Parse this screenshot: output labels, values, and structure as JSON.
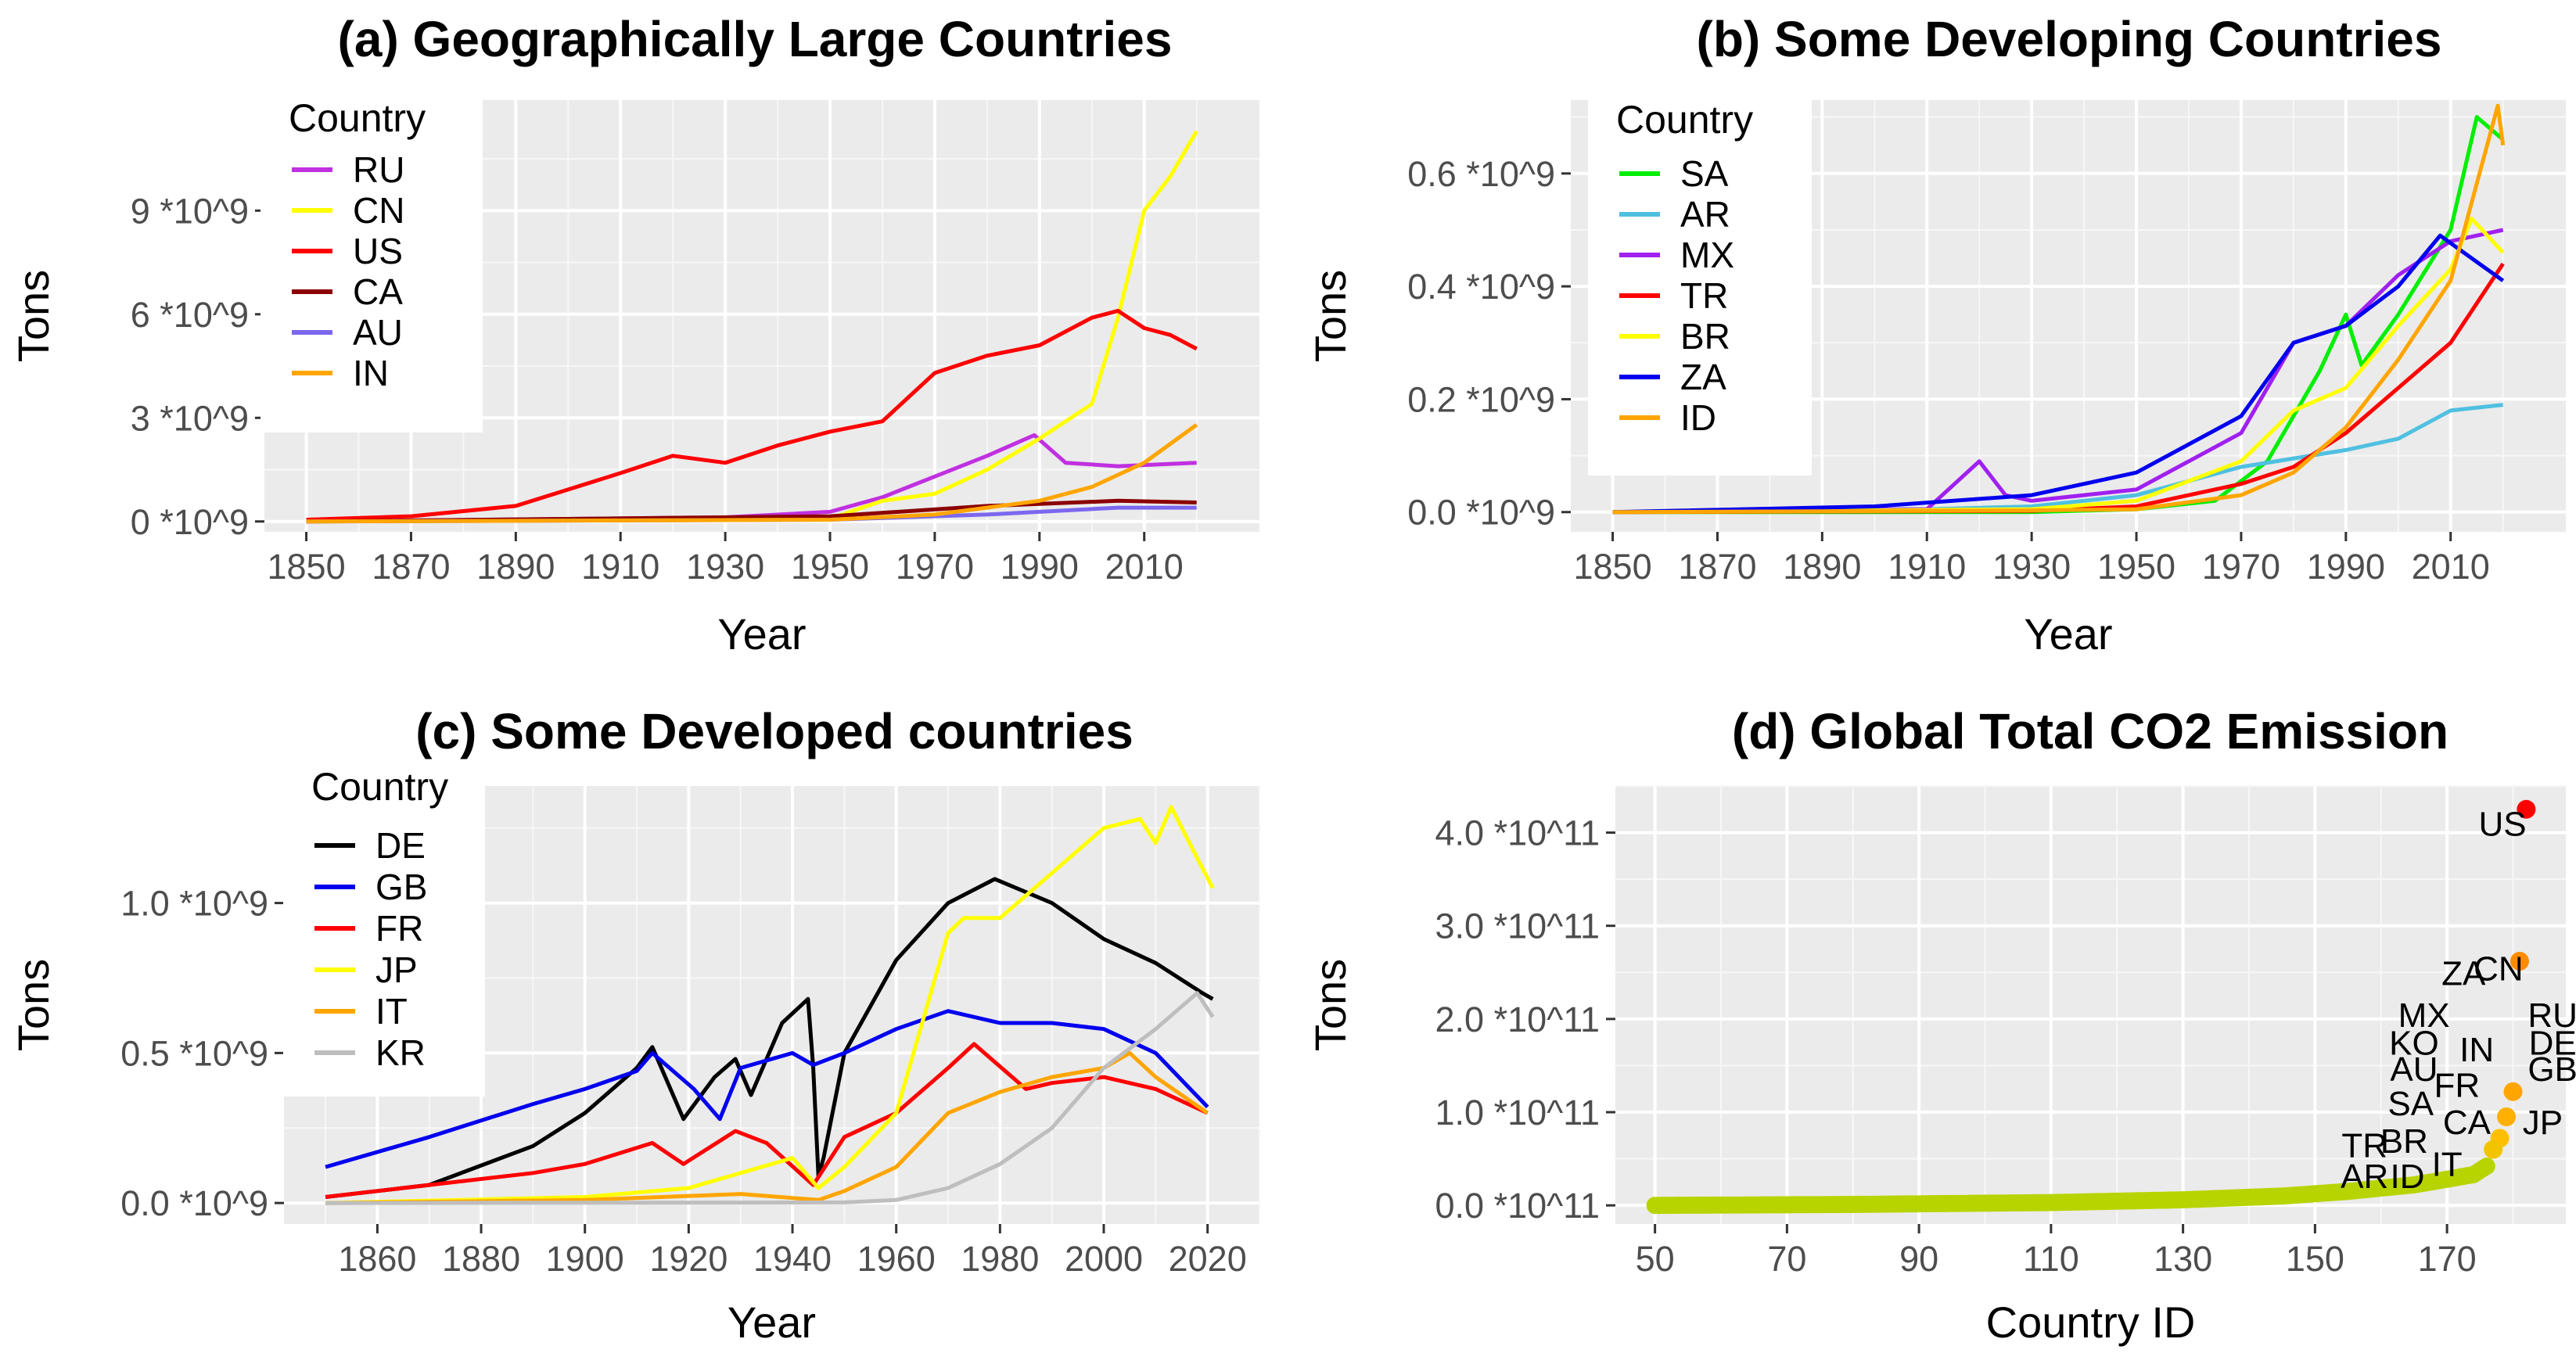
{
  "chart_data": [
    {
      "type": "line",
      "title": "(a) Geographically Large Countries",
      "xlabel": "Year",
      "ylabel": "Tons",
      "xlim": [
        1842,
        2032
      ],
      "ylim": [
        -0.3,
        12.2
      ],
      "xticks": [
        1850,
        1870,
        1890,
        1910,
        1930,
        1950,
        1970,
        1990,
        2010
      ],
      "xtick_labels": [
        "1850",
        "1870",
        "1890",
        "1910",
        "1930",
        "1950",
        "1970",
        "1990",
        "2010"
      ],
      "yticks": [
        0,
        3,
        6,
        9
      ],
      "ytick_labels": [
        "0 *10^9",
        "3 *10^9",
        "6 *10^9",
        "9 *10^9"
      ],
      "y_unit_note": "values in units of 10^9 tons",
      "legend": {
        "title": "Country",
        "position": "top-left"
      },
      "series": [
        {
          "name": "RU",
          "color": "#c030e0",
          "x": [
            1850,
            1930,
            1950,
            1960,
            1970,
            1980,
            1989,
            1995,
            2005,
            2020
          ],
          "y": [
            0,
            0.12,
            0.28,
            0.7,
            1.3,
            1.9,
            2.5,
            1.7,
            1.6,
            1.7
          ]
        },
        {
          "name": "CN",
          "color": "#ffff00",
          "x": [
            1850,
            1950,
            1960,
            1970,
            1980,
            1990,
            2000,
            2005,
            2010,
            2015,
            2020
          ],
          "y": [
            0,
            0.08,
            0.6,
            0.8,
            1.5,
            2.4,
            3.4,
            5.9,
            9.0,
            10.0,
            11.3
          ]
        },
        {
          "name": "US",
          "color": "#ff0000",
          "x": [
            1850,
            1870,
            1890,
            1910,
            1920,
            1930,
            1940,
            1950,
            1960,
            1970,
            1980,
            1990,
            2000,
            2005,
            2010,
            2015,
            2020
          ],
          "y": [
            0.05,
            0.15,
            0.45,
            1.4,
            1.9,
            1.7,
            2.2,
            2.6,
            2.9,
            4.3,
            4.8,
            5.1,
            5.9,
            6.1,
            5.6,
            5.4,
            5.0
          ]
        },
        {
          "name": "CA",
          "color": "#8b0000",
          "x": [
            1850,
            1950,
            1980,
            2005,
            2020
          ],
          "y": [
            0,
            0.15,
            0.45,
            0.6,
            0.55
          ]
        },
        {
          "name": "AU",
          "color": "#7b68ee",
          "x": [
            1850,
            1950,
            1980,
            2005,
            2020
          ],
          "y": [
            0,
            0.05,
            0.2,
            0.4,
            0.4
          ]
        },
        {
          "name": "IN",
          "color": "#ffa500",
          "x": [
            1850,
            1950,
            1970,
            1990,
            2000,
            2010,
            2020
          ],
          "y": [
            0,
            0.05,
            0.2,
            0.6,
            1.0,
            1.7,
            2.8
          ]
        }
      ]
    },
    {
      "type": "line",
      "title": "(b) Some Developing Countries",
      "xlabel": "Year",
      "ylabel": "Tons",
      "xlim": [
        1842,
        2032
      ],
      "ylim": [
        -0.035,
        0.73
      ],
      "xticks": [
        1850,
        1870,
        1890,
        1910,
        1930,
        1950,
        1970,
        1990,
        2010
      ],
      "xtick_labels": [
        "1850",
        "1870",
        "1890",
        "1910",
        "1930",
        "1950",
        "1970",
        "1990",
        "2010"
      ],
      "yticks": [
        0,
        0.2,
        0.4,
        0.6
      ],
      "ytick_labels": [
        "0.0 *10^9",
        "0.2 *10^9",
        "0.4 *10^9",
        "0.6 *10^9"
      ],
      "y_unit_note": "values in units of 10^9 tons",
      "legend": {
        "title": "Country",
        "position": "top-left"
      },
      "series": [
        {
          "name": "SA",
          "color": "#00ee00",
          "x": [
            1850,
            1930,
            1950,
            1965,
            1975,
            1985,
            1990,
            1993,
            2000,
            2010,
            2015,
            2020
          ],
          "y": [
            0,
            0,
            0.005,
            0.02,
            0.09,
            0.25,
            0.35,
            0.26,
            0.35,
            0.5,
            0.7,
            0.66
          ]
        },
        {
          "name": "AR",
          "color": "#4fc0e0",
          "x": [
            1850,
            1910,
            1930,
            1950,
            1970,
            1990,
            2000,
            2010,
            2020
          ],
          "y": [
            0,
            0.005,
            0.01,
            0.03,
            0.08,
            0.11,
            0.13,
            0.18,
            0.19
          ]
        },
        {
          "name": "MX",
          "color": "#a020f0",
          "x": [
            1850,
            1910,
            1920,
            1925,
            1930,
            1950,
            1970,
            1980,
            1990,
            2000,
            2010,
            2020
          ],
          "y": [
            0,
            0.005,
            0.09,
            0.03,
            0.02,
            0.04,
            0.14,
            0.3,
            0.33,
            0.42,
            0.48,
            0.5
          ]
        },
        {
          "name": "TR",
          "color": "#ff0000",
          "x": [
            1850,
            1930,
            1950,
            1970,
            1980,
            1990,
            2000,
            2010,
            2020
          ],
          "y": [
            0,
            0.002,
            0.01,
            0.05,
            0.08,
            0.14,
            0.22,
            0.3,
            0.44
          ]
        },
        {
          "name": "BR",
          "color": "#ffff00",
          "x": [
            1850,
            1930,
            1950,
            1970,
            1980,
            1990,
            2000,
            2010,
            2014,
            2020
          ],
          "y": [
            0,
            0.005,
            0.02,
            0.09,
            0.18,
            0.22,
            0.33,
            0.43,
            0.52,
            0.46
          ]
        },
        {
          "name": "ZA",
          "color": "#0000ee",
          "x": [
            1850,
            1900,
            1930,
            1950,
            1970,
            1980,
            1990,
            2000,
            2008,
            2020
          ],
          "y": [
            0,
            0.01,
            0.03,
            0.07,
            0.17,
            0.3,
            0.33,
            0.4,
            0.49,
            0.41
          ]
        },
        {
          "name": "ID",
          "color": "#ffa500",
          "x": [
            1850,
            1930,
            1950,
            1970,
            1980,
            1990,
            2000,
            2010,
            2019,
            2020
          ],
          "y": [
            0,
            0.003,
            0.005,
            0.03,
            0.07,
            0.15,
            0.27,
            0.41,
            0.72,
            0.65
          ]
        }
      ]
    },
    {
      "type": "line",
      "title": "(c) Some Developed countries",
      "xlabel": "Year",
      "ylabel": "Tons",
      "xlim": [
        1842,
        2030
      ],
      "ylim": [
        -0.07,
        1.39
      ],
      "xticks": [
        1860,
        1880,
        1900,
        1920,
        1940,
        1960,
        1980,
        2000,
        2020
      ],
      "xtick_labels": [
        "1860",
        "1880",
        "1900",
        "1920",
        "1940",
        "1960",
        "1980",
        "2000",
        "2020"
      ],
      "yticks": [
        0,
        0.5,
        1.0
      ],
      "ytick_labels": [
        "0.0 *10^9",
        "0.5 *10^9",
        "1.0 *10^9"
      ],
      "y_unit_note": "values in units of 10^9 tons",
      "legend": {
        "title": "Country",
        "position": "top-left"
      },
      "series": [
        {
          "name": "DE",
          "color": "#000000",
          "x": [
            1850,
            1870,
            1890,
            1900,
            1910,
            1913,
            1919,
            1925,
            1929,
            1932,
            1938,
            1943,
            1944,
            1945,
            1946,
            1950,
            1960,
            1970,
            1979,
            1990,
            2000,
            2010,
            2019,
            2021
          ],
          "y": [
            0.02,
            0.06,
            0.19,
            0.3,
            0.45,
            0.52,
            0.28,
            0.42,
            0.48,
            0.36,
            0.6,
            0.68,
            0.45,
            0.09,
            0.15,
            0.5,
            0.81,
            1.0,
            1.08,
            1.0,
            0.88,
            0.8,
            0.7,
            0.68
          ]
        },
        {
          "name": "GB",
          "color": "#0000ee",
          "x": [
            1850,
            1870,
            1890,
            1900,
            1910,
            1913,
            1921,
            1926,
            1930,
            1940,
            1944,
            1950,
            1960,
            1970,
            1980,
            1990,
            2000,
            2010,
            2020
          ],
          "y": [
            0.12,
            0.22,
            0.33,
            0.38,
            0.44,
            0.5,
            0.38,
            0.28,
            0.45,
            0.5,
            0.46,
            0.5,
            0.58,
            0.64,
            0.6,
            0.6,
            0.58,
            0.5,
            0.32
          ]
        },
        {
          "name": "FR",
          "color": "#ff0000",
          "x": [
            1850,
            1870,
            1890,
            1900,
            1913,
            1919,
            1929,
            1935,
            1944,
            1950,
            1960,
            1970,
            1975,
            1985,
            1990,
            2000,
            2010,
            2020
          ],
          "y": [
            0.02,
            0.06,
            0.1,
            0.13,
            0.2,
            0.13,
            0.24,
            0.2,
            0.06,
            0.22,
            0.3,
            0.45,
            0.53,
            0.38,
            0.4,
            0.42,
            0.38,
            0.3
          ]
        },
        {
          "name": "JP",
          "color": "#ffff00",
          "x": [
            1850,
            1900,
            1920,
            1940,
            1945,
            1950,
            1960,
            1970,
            1973,
            1980,
            1990,
            2000,
            2007,
            2010,
            2013,
            2018,
            2021
          ],
          "y": [
            0,
            0.02,
            0.05,
            0.15,
            0.05,
            0.12,
            0.3,
            0.9,
            0.95,
            0.95,
            1.1,
            1.25,
            1.28,
            1.2,
            1.32,
            1.15,
            1.05
          ]
        },
        {
          "name": "IT",
          "color": "#ffa500",
          "x": [
            1850,
            1900,
            1930,
            1945,
            1950,
            1960,
            1970,
            1980,
            1990,
            2000,
            2005,
            2010,
            2020
          ],
          "y": [
            0,
            0.01,
            0.03,
            0.01,
            0.04,
            0.12,
            0.3,
            0.37,
            0.42,
            0.45,
            0.5,
            0.42,
            0.3
          ]
        },
        {
          "name": "KR",
          "color": "#bebebe",
          "x": [
            1850,
            1950,
            1960,
            1970,
            1980,
            1990,
            2000,
            2010,
            2018,
            2021
          ],
          "y": [
            0,
            0.002,
            0.01,
            0.05,
            0.13,
            0.25,
            0.45,
            0.58,
            0.7,
            0.62
          ]
        }
      ]
    },
    {
      "type": "scatter",
      "title": "(d) Global Total CO2 Emission",
      "xlabel": "Country ID",
      "ylabel": "Tons",
      "xlim": [
        44,
        188
      ],
      "ylim": [
        -0.2,
        4.5
      ],
      "xticks": [
        50,
        70,
        90,
        110,
        130,
        150,
        170
      ],
      "xtick_labels": [
        "50",
        "70",
        "90",
        "110",
        "130",
        "150",
        "170"
      ],
      "yticks": [
        0,
        1,
        2,
        3,
        4
      ],
      "ytick_labels": [
        "0.0 *10^11",
        "1.0 *10^11",
        "2.0 *10^11",
        "3.0 *10^11",
        "4.0 *10^11"
      ],
      "y_unit_note": "values in units of 10^11 tons",
      "points": [
        {
          "x": 182,
          "y": 4.25,
          "color": "#ff0000"
        },
        {
          "x": 181,
          "y": 2.62,
          "color": "#ff8c00"
        },
        {
          "x": 180,
          "y": 1.22,
          "color": "#ffa500"
        },
        {
          "x": 179,
          "y": 0.95,
          "color": "#ffb000"
        },
        {
          "x": 178,
          "y": 0.72,
          "color": "#ffbf00"
        },
        {
          "x": 177,
          "y": 0.6,
          "color": "#f2c400"
        }
      ],
      "bulk_curve": {
        "color": "#b8d400",
        "x": [
          50,
          80,
          110,
          130,
          145,
          155,
          165,
          170,
          174,
          176
        ],
        "y": [
          0.0,
          0.01,
          0.03,
          0.06,
          0.1,
          0.15,
          0.22,
          0.28,
          0.33,
          0.42
        ]
      },
      "annotations": [
        {
          "text": "US",
          "x": 178.4,
          "y": 4.1
        },
        {
          "text": "CN",
          "x": 177.8,
          "y": 2.55
        },
        {
          "text": "ZA",
          "x": 172.5,
          "y": 2.5
        },
        {
          "text": "MX",
          "x": 166.5,
          "y": 2.05
        },
        {
          "text": "KO",
          "x": 165,
          "y": 1.75
        },
        {
          "text": "AU",
          "x": 165,
          "y": 1.47
        },
        {
          "text": "IN",
          "x": 174.5,
          "y": 1.68
        },
        {
          "text": "RU",
          "x": 186,
          "y": 2.05
        },
        {
          "text": "DE",
          "x": 186,
          "y": 1.75
        },
        {
          "text": "GB",
          "x": 186,
          "y": 1.47
        },
        {
          "text": "SA",
          "x": 164.5,
          "y": 1.1
        },
        {
          "text": "FR",
          "x": 171.5,
          "y": 1.3
        },
        {
          "text": "CA",
          "x": 173,
          "y": 0.9
        },
        {
          "text": "JP",
          "x": 184.5,
          "y": 0.9
        },
        {
          "text": "TR",
          "x": 157.5,
          "y": 0.65
        },
        {
          "text": "BR",
          "x": 163.5,
          "y": 0.7
        },
        {
          "text": "AR",
          "x": 157.5,
          "y": 0.32
        },
        {
          "text": "ID",
          "x": 164,
          "y": 0.32
        },
        {
          "text": "IT",
          "x": 170,
          "y": 0.45
        }
      ]
    }
  ]
}
